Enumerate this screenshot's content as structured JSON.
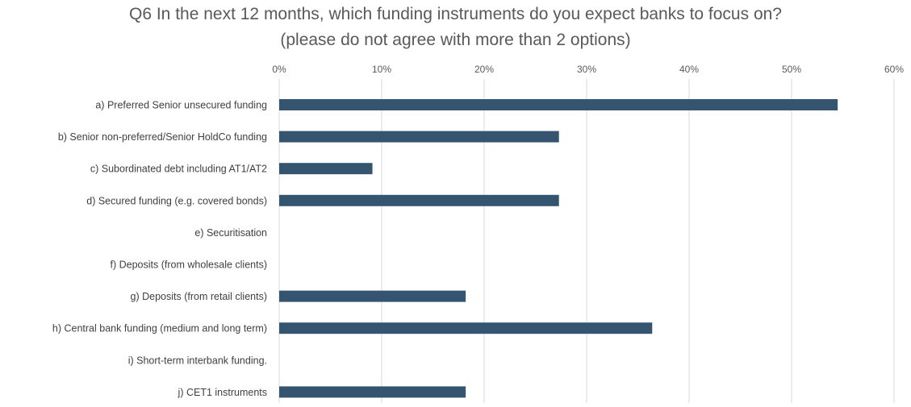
{
  "chart_data": {
    "type": "bar",
    "orientation": "horizontal",
    "title": "Q6 In the next 12 months, which funding instruments do you expect banks to focus on?",
    "subtitle": "(please do not agree with more than 2 options)",
    "xlabel": "",
    "ylabel": "",
    "xlim": [
      0,
      60
    ],
    "x_ticks": [
      "0%",
      "10%",
      "20%",
      "30%",
      "40%",
      "50%",
      "60%"
    ],
    "x_axis_position": "top",
    "grid": true,
    "legend": "none",
    "bar_color": "#34546f",
    "categories": [
      "a) Preferred Senior unsecured funding",
      "b) Senior non-preferred/Senior HoldCo funding",
      "c) Subordinated debt including AT1/AT2",
      "d) Secured funding (e.g. covered bonds)",
      "e) Securitisation",
      "f) Deposits (from wholesale clients)",
      "g) Deposits (from retail clients)",
      "h) Central bank funding (medium and long term)",
      "i) Short-term interbank funding.",
      "j) CET1 instruments"
    ],
    "values": [
      54.5,
      27.3,
      9.1,
      27.3,
      0,
      0,
      18.2,
      36.4,
      0,
      18.2
    ]
  }
}
